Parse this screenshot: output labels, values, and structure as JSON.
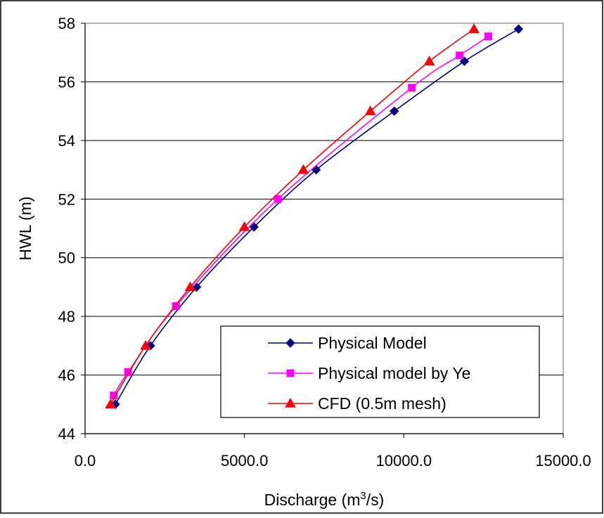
{
  "chart_data": {
    "type": "line",
    "title": "",
    "xlabel": "Discharge (m",
    "xlabel_sup": "3",
    "xlabel_tail": "/s)",
    "ylabel": "HWL (m)",
    "xlim": [
      0,
      15000
    ],
    "ylim": [
      44,
      58
    ],
    "x_ticks": [
      0,
      5000,
      10000,
      15000
    ],
    "x_tick_labels": [
      "0.0",
      "5000.0",
      "10000.0",
      "15000.0"
    ],
    "y_ticks": [
      44,
      46,
      48,
      50,
      52,
      54,
      56,
      58
    ],
    "y_tick_labels": [
      "44",
      "46",
      "48",
      "50",
      "52",
      "54",
      "56",
      "58"
    ],
    "grid": "horizontal",
    "legend_position": "bottom-right",
    "series": [
      {
        "name": "Physical Model",
        "color": "#000080",
        "marker": "diamond",
        "x": [
          950,
          2050,
          3500,
          5300,
          7250,
          9700,
          11900,
          13600
        ],
        "y": [
          45.0,
          47.0,
          49.0,
          51.05,
          53.0,
          55.0,
          56.7,
          57.8
        ]
      },
      {
        "name": "Physical model by Ye",
        "color": "#FF00FF",
        "marker": "square",
        "x": [
          900,
          1350,
          2850,
          6050,
          10250,
          11750,
          12650
        ],
        "y": [
          45.3,
          46.1,
          48.35,
          52.0,
          55.8,
          56.9,
          57.55
        ]
      },
      {
        "name": "CFD (0.5m mesh)",
        "color": "#FF0000",
        "marker": "triangle",
        "x": [
          800,
          1900,
          3300,
          5000,
          6850,
          8950,
          10800,
          12200
        ],
        "y": [
          45.0,
          47.0,
          49.0,
          51.05,
          53.0,
          55.0,
          56.7,
          57.8
        ]
      }
    ]
  }
}
